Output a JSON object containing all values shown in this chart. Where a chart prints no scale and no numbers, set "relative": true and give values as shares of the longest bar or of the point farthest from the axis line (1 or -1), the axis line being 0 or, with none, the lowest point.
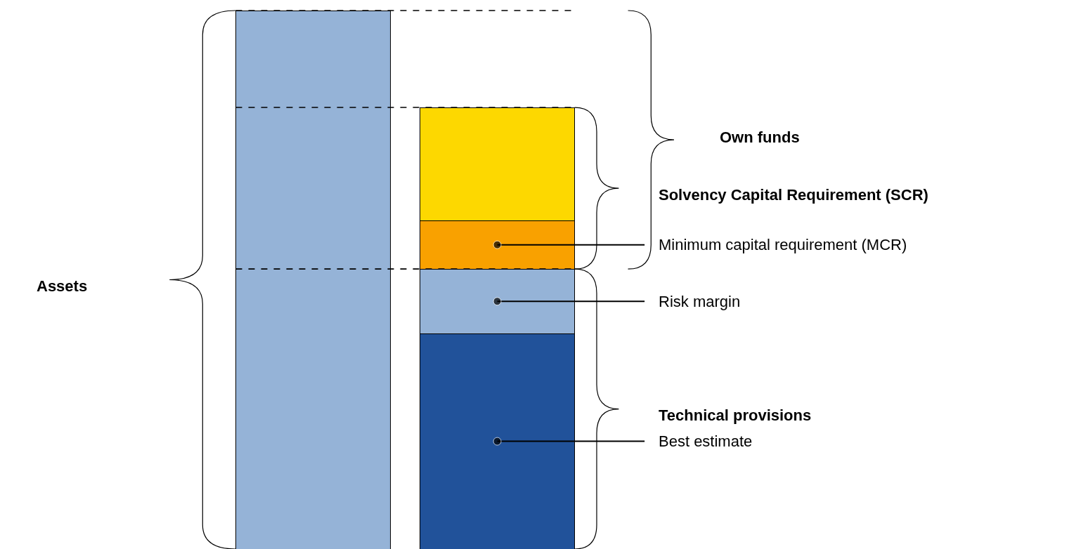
{
  "chart_data": {
    "type": "bar",
    "relative": true,
    "stacked": true,
    "categories": [
      null,
      null
    ],
    "series": [
      {
        "color": "#95b3d7",
        "values": [
          1,
          null
        ]
      },
      {
        "name": "Best estimate",
        "color": "#21529a",
        "values": [
          null,
          0.4
        ]
      },
      {
        "name": "Risk margin",
        "color": "#95b3d7",
        "values": [
          null,
          0.12
        ]
      },
      {
        "name": "Minimum capital requirement (MCR)",
        "color": "#f9a100",
        "values": [
          null,
          0.09
        ]
      },
      {
        "color": "#fdd800",
        "values": [
          null,
          0.21
        ]
      }
    ],
    "annotations": [
      "Assets",
      "Own funds",
      "Solvency Capital Requirement (SCR)",
      "Technical provisions"
    ],
    "ref_lines": [
      {
        "axis": "y",
        "value": 1,
        "line_style": "dashed"
      },
      {
        "axis": "y",
        "value": 0.82,
        "line_style": "dashed"
      },
      {
        "axis": "y",
        "value": 0.52,
        "line_style": "dashed"
      }
    ],
    "legend": false
  }
}
